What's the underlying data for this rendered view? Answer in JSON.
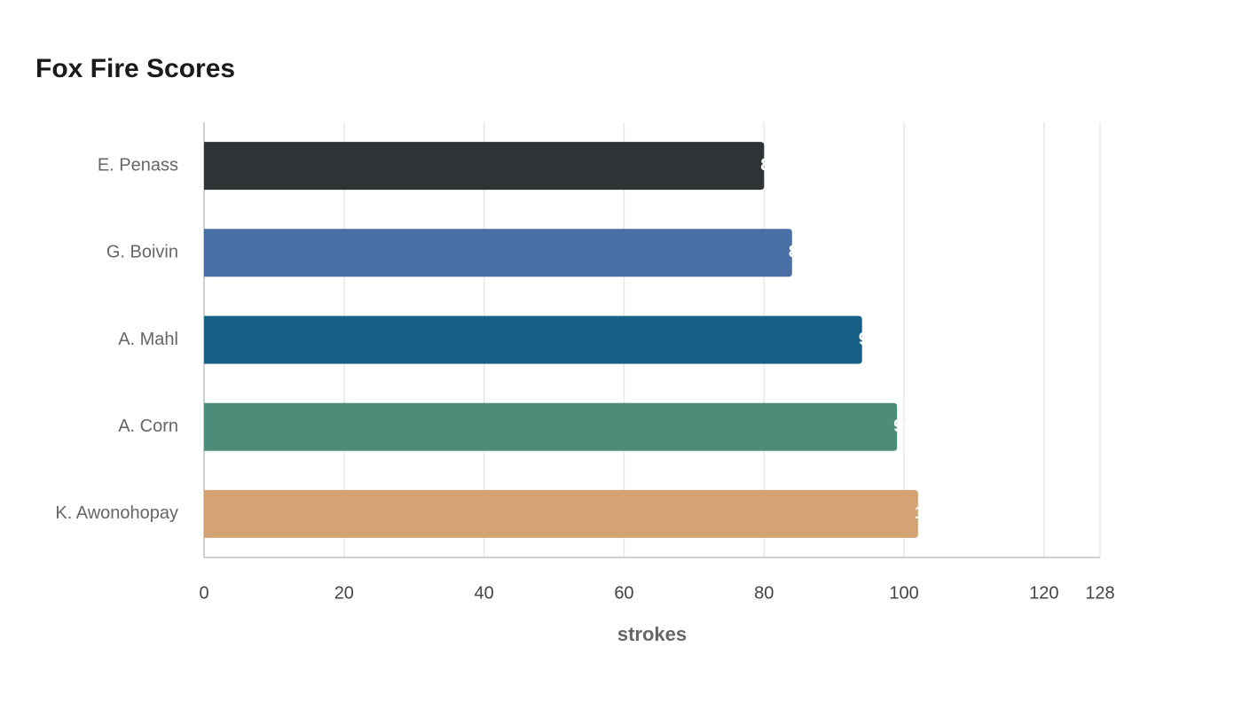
{
  "chart_data": {
    "type": "bar",
    "orientation": "horizontal",
    "title": "Fox Fire Scores",
    "x_label": "strokes",
    "categories": [
      "E. Penass",
      "G. Boivin",
      "A. Mahl",
      "A. Corn",
      "K. Awonohopay"
    ],
    "values": [
      80,
      84,
      94,
      99,
      102
    ],
    "colors": [
      "#2e3436",
      "#4a6fa5",
      "#166088",
      "#4e8c7a",
      "#d4a373"
    ],
    "xlim": [
      0,
      128
    ],
    "xticks": [
      0,
      20,
      40,
      60,
      80,
      100,
      120,
      128
    ],
    "grid": true
  }
}
